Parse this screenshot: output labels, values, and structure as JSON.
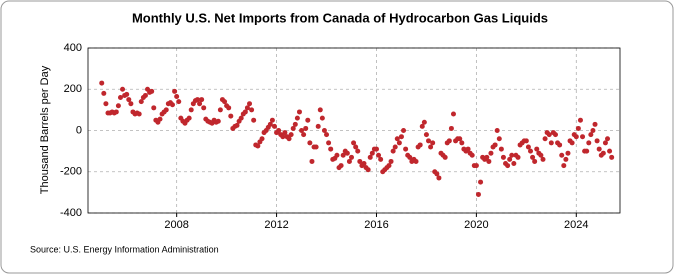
{
  "chart_data": {
    "type": "scatter",
    "title": "Monthly U.S. Net Imports from Canada of Hydrocarbon Gas Liquids",
    "ylabel": "Thousand Barrels per Day",
    "source": "Source: U.S. Energy Information Administration",
    "color": "#c0272d",
    "grid": true,
    "xlim": [
      2004.45,
      2025.75
    ],
    "xticks": [
      2008,
      2012,
      2016,
      2020,
      2024
    ],
    "ylim": [
      -400,
      400
    ],
    "yticks": [
      -400,
      -200,
      0,
      200,
      400
    ],
    "series": [
      {
        "name": "Net Imports",
        "color": "#c0272d",
        "x": [
          2005,
          2005.083,
          2005.167,
          2005.25,
          2005.333,
          2005.417,
          2005.5,
          2005.583,
          2005.667,
          2005.75,
          2005.833,
          2005.917,
          2006,
          2006.083,
          2006.167,
          2006.25,
          2006.333,
          2006.417,
          2006.5,
          2006.583,
          2006.667,
          2006.75,
          2006.833,
          2006.917,
          2007,
          2007.083,
          2007.167,
          2007.25,
          2007.333,
          2007.417,
          2007.5,
          2007.583,
          2007.667,
          2007.75,
          2007.833,
          2007.917,
          2008,
          2008.083,
          2008.167,
          2008.25,
          2008.333,
          2008.417,
          2008.5,
          2008.583,
          2008.667,
          2008.75,
          2008.833,
          2008.917,
          2009,
          2009.083,
          2009.167,
          2009.25,
          2009.333,
          2009.417,
          2009.5,
          2009.583,
          2009.667,
          2009.75,
          2009.833,
          2009.917,
          2010,
          2010.083,
          2010.167,
          2010.25,
          2010.333,
          2010.417,
          2010.5,
          2010.583,
          2010.667,
          2010.75,
          2010.833,
          2010.917,
          2011,
          2011.083,
          2011.167,
          2011.25,
          2011.333,
          2011.417,
          2011.5,
          2011.583,
          2011.667,
          2011.75,
          2011.833,
          2011.917,
          2012,
          2012.083,
          2012.167,
          2012.25,
          2012.333,
          2012.417,
          2012.5,
          2012.583,
          2012.667,
          2012.75,
          2012.833,
          2012.917,
          2013,
          2013.083,
          2013.167,
          2013.25,
          2013.333,
          2013.417,
          2013.5,
          2013.583,
          2013.667,
          2013.75,
          2013.833,
          2013.917,
          2014,
          2014.083,
          2014.167,
          2014.25,
          2014.333,
          2014.417,
          2014.5,
          2014.583,
          2014.667,
          2014.75,
          2014.833,
          2014.917,
          2015,
          2015.083,
          2015.167,
          2015.25,
          2015.333,
          2015.417,
          2015.5,
          2015.583,
          2015.667,
          2015.75,
          2015.833,
          2015.917,
          2016,
          2016.083,
          2016.167,
          2016.25,
          2016.333,
          2016.417,
          2016.5,
          2016.583,
          2016.667,
          2016.75,
          2016.833,
          2016.917,
          2017,
          2017.083,
          2017.167,
          2017.25,
          2017.333,
          2017.417,
          2017.5,
          2017.583,
          2017.667,
          2017.75,
          2017.833,
          2017.917,
          2018,
          2018.083,
          2018.167,
          2018.25,
          2018.333,
          2018.417,
          2018.5,
          2018.583,
          2018.667,
          2018.75,
          2018.833,
          2018.917,
          2019,
          2019.083,
          2019.167,
          2019.25,
          2019.333,
          2019.417,
          2019.5,
          2019.583,
          2019.667,
          2019.75,
          2019.833,
          2019.917,
          2020,
          2020.083,
          2020.167,
          2020.25,
          2020.333,
          2020.417,
          2020.5,
          2020.583,
          2020.667,
          2020.75,
          2020.833,
          2020.917,
          2021,
          2021.083,
          2021.167,
          2021.25,
          2021.333,
          2021.417,
          2021.5,
          2021.583,
          2021.667,
          2021.75,
          2021.833,
          2021.917,
          2022,
          2022.083,
          2022.167,
          2022.25,
          2022.333,
          2022.417,
          2022.5,
          2022.583,
          2022.667,
          2022.75,
          2022.833,
          2022.917,
          2023,
          2023.083,
          2023.167,
          2023.25,
          2023.333,
          2023.417,
          2023.5,
          2023.583,
          2023.667,
          2023.75,
          2023.833,
          2023.917,
          2024,
          2024.083,
          2024.167,
          2024.25,
          2024.333,
          2024.417,
          2024.5,
          2024.583,
          2024.667,
          2024.75,
          2024.833,
          2024.917,
          2025,
          2025.083,
          2025.167,
          2025.25,
          2025.333,
          2025.417
        ],
        "values": [
          230,
          180,
          130,
          85,
          85,
          90,
          85,
          90,
          120,
          160,
          200,
          170,
          175,
          150,
          130,
          90,
          80,
          85,
          80,
          140,
          160,
          170,
          200,
          185,
          190,
          110,
          50,
          40,
          55,
          80,
          90,
          100,
          130,
          135,
          125,
          190,
          165,
          140,
          60,
          45,
          35,
          50,
          60,
          100,
          130,
          145,
          150,
          130,
          150,
          110,
          55,
          45,
          40,
          35,
          50,
          40,
          45,
          100,
          150,
          140,
          120,
          110,
          70,
          10,
          20,
          25,
          45,
          60,
          80,
          90,
          110,
          130,
          100,
          50,
          -70,
          -75,
          -55,
          -40,
          -10,
          0,
          15,
          30,
          50,
          20,
          -10,
          0,
          -20,
          -30,
          -10,
          -30,
          -40,
          -20,
          10,
          30,
          60,
          90,
          0,
          -20,
          10,
          50,
          -60,
          -150,
          -80,
          -80,
          20,
          100,
          60,
          0,
          -20,
          -60,
          -90,
          -140,
          -135,
          -120,
          -180,
          -170,
          -120,
          -100,
          -110,
          -150,
          -130,
          -60,
          -80,
          -100,
          -150,
          -170,
          -160,
          -180,
          -190,
          -130,
          -110,
          -90,
          -90,
          -120,
          -140,
          -200,
          -190,
          -180,
          -170,
          -150,
          -100,
          -80,
          -40,
          -60,
          -30,
          0,
          -90,
          -120,
          -130,
          -150,
          -140,
          -150,
          -80,
          -70,
          20,
          40,
          -20,
          -50,
          -80,
          -60,
          -200,
          -210,
          -230,
          -110,
          -120,
          -130,
          -60,
          -50,
          10,
          80,
          -50,
          -40,
          -40,
          -60,
          -90,
          -100,
          -90,
          -110,
          -120,
          -170,
          -170,
          -310,
          -250,
          -130,
          -140,
          -130,
          -150,
          -110,
          -80,
          -70,
          0,
          -40,
          -90,
          -130,
          -160,
          -170,
          -140,
          -120,
          -160,
          -120,
          -130,
          -70,
          -60,
          -50,
          -50,
          -80,
          -100,
          -130,
          -150,
          -90,
          -110,
          -120,
          -140,
          -40,
          -10,
          -20,
          -60,
          -10,
          -20,
          -60,
          -70,
          -120,
          -170,
          -140,
          -110,
          -50,
          -60,
          -20,
          -30,
          10,
          50,
          -30,
          -100,
          -100,
          -60,
          -20,
          0,
          30,
          -50,
          -90,
          -120,
          -110,
          -60,
          -40,
          -100,
          -130
        ]
      }
    ]
  }
}
